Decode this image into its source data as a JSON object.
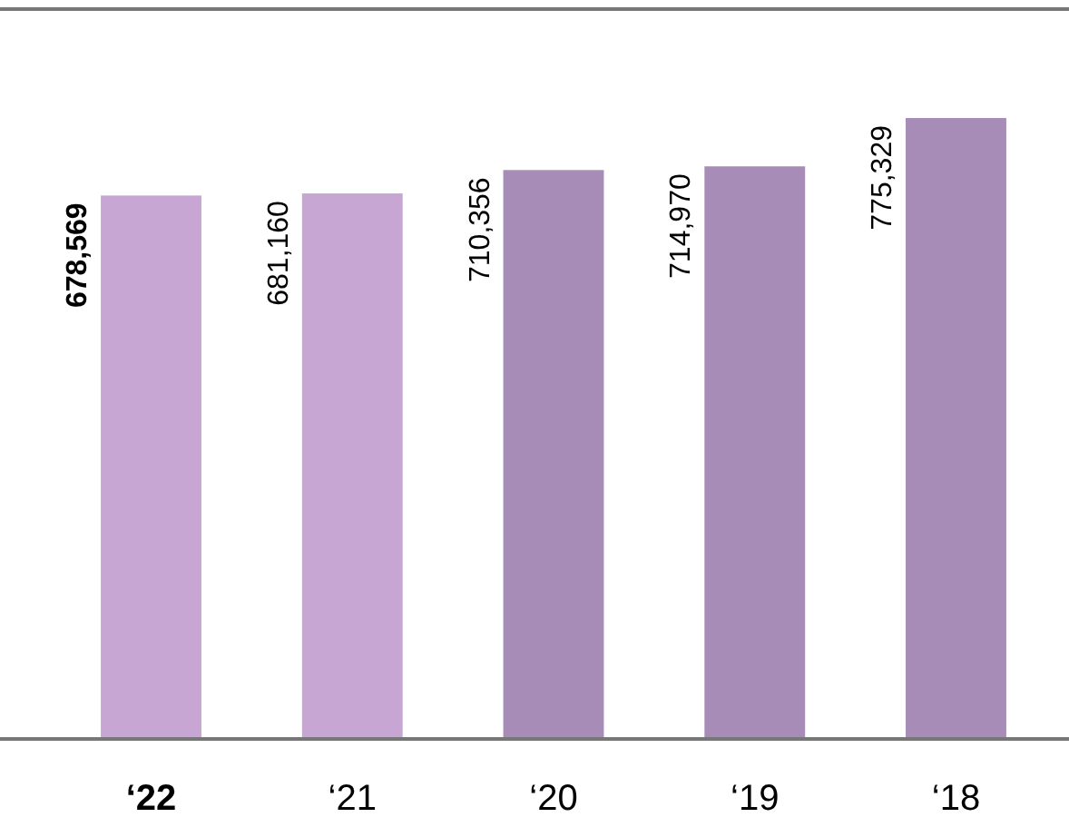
{
  "chart_data": {
    "type": "bar",
    "categories": [
      "‘22",
      "‘21",
      "‘20",
      "‘19",
      "‘18"
    ],
    "values": [
      678569,
      681160,
      710356,
      714970,
      775329
    ],
    "colors": [
      "#c8a6d3",
      "#c8a6d3",
      "#a88cb8",
      "#a88cb8",
      "#a88cb8"
    ],
    "value_labels": [
      "678,569",
      "681,160",
      "710,356",
      "714,970",
      "775,329"
    ],
    "tick_labels": "x"
  }
}
